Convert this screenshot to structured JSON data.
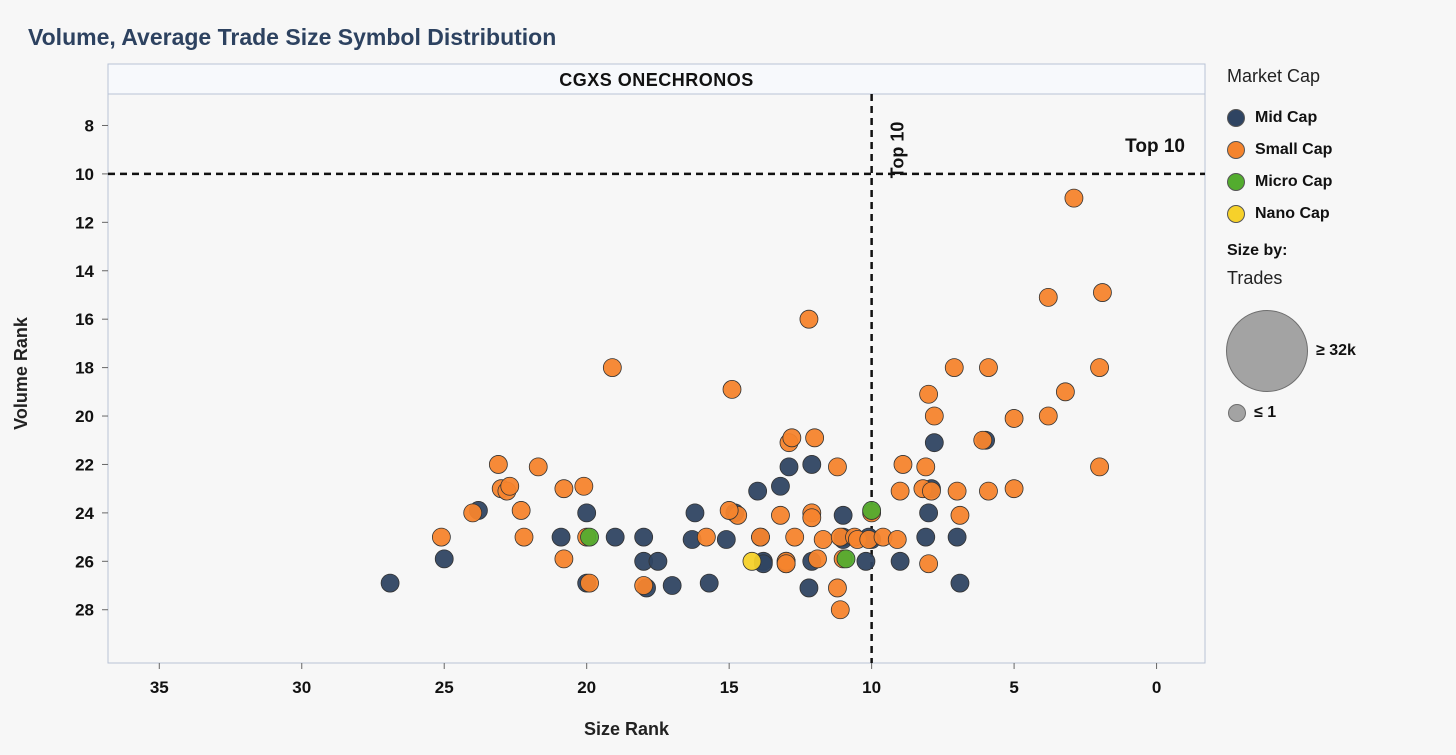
{
  "title": "Volume, Average Trade Size Symbol Distribution",
  "chart_data": {
    "type": "scatter",
    "panel_title": "CGXS ONECHRONOS",
    "xlabel": "Size Rank",
    "ylabel": "Volume Rank",
    "x_reversed": true,
    "y_reversed": true,
    "xlim": [
      36.8,
      -1.7
    ],
    "ylim": [
      6.7,
      30.2
    ],
    "x_ticks": [
      35,
      30,
      25,
      20,
      15,
      10,
      5,
      0
    ],
    "y_ticks": [
      8,
      10,
      12,
      14,
      16,
      18,
      20,
      22,
      24,
      26,
      28
    ],
    "reference_lines": [
      {
        "axis": "x",
        "value": 10,
        "label": "Top 10"
      },
      {
        "axis": "y",
        "value": 10,
        "label": "Top 10"
      }
    ],
    "colors": {
      "Mid Cap": "#2f4462",
      "Small Cap": "#f5842d",
      "Micro Cap": "#53ac2f",
      "Nano Cap": "#f6d12a"
    },
    "series": [
      {
        "name": "Mid Cap",
        "points": [
          [
            26.9,
            26.9
          ],
          [
            25,
            25.9
          ],
          [
            23.8,
            23.9
          ],
          [
            20.9,
            25
          ],
          [
            20,
            24
          ],
          [
            20,
            26.9
          ],
          [
            19,
            25
          ],
          [
            18,
            25
          ],
          [
            18,
            26
          ],
          [
            17.9,
            27.1
          ],
          [
            17.5,
            26
          ],
          [
            17,
            27
          ],
          [
            16.2,
            24
          ],
          [
            16.3,
            25.1
          ],
          [
            15.7,
            26.9
          ],
          [
            15.1,
            25.1
          ],
          [
            14.8,
            24
          ],
          [
            14,
            23.1
          ],
          [
            13.9,
            25
          ],
          [
            13.8,
            26
          ],
          [
            13.8,
            26.1
          ],
          [
            13.2,
            22.9
          ],
          [
            13,
            26
          ],
          [
            13,
            26.1
          ],
          [
            12.9,
            22.1
          ],
          [
            12.1,
            22
          ],
          [
            12.1,
            26
          ],
          [
            12.2,
            27.1
          ],
          [
            11,
            24.1
          ],
          [
            11,
            25
          ],
          [
            11,
            25.1
          ],
          [
            10.2,
            26
          ],
          [
            10,
            25.1
          ],
          [
            10.1,
            25
          ],
          [
            9,
            26
          ],
          [
            8.1,
            25
          ],
          [
            8,
            24
          ],
          [
            7.9,
            23
          ],
          [
            7.8,
            21.1
          ],
          [
            7,
            25
          ],
          [
            6.9,
            26.9
          ],
          [
            6,
            21
          ]
        ]
      },
      {
        "name": "Small Cap",
        "points": [
          [
            25.1,
            25
          ],
          [
            23.1,
            22
          ],
          [
            23,
            23
          ],
          [
            22.8,
            23.1
          ],
          [
            22.7,
            22.9
          ],
          [
            24,
            24
          ],
          [
            22.3,
            23.9
          ],
          [
            22.2,
            25
          ],
          [
            21.7,
            22.1
          ],
          [
            20.8,
            23
          ],
          [
            20.8,
            25.9
          ],
          [
            20.1,
            22.9
          ],
          [
            20,
            25
          ],
          [
            19.9,
            26.9
          ],
          [
            19.1,
            18
          ],
          [
            18,
            27
          ],
          [
            15.8,
            25
          ],
          [
            14.9,
            18.9
          ],
          [
            14.7,
            24.1
          ],
          [
            15,
            23.9
          ],
          [
            13.9,
            25
          ],
          [
            13.2,
            24.1
          ],
          [
            13,
            26
          ],
          [
            13,
            26.1
          ],
          [
            12.9,
            21.1
          ],
          [
            12.8,
            20.9
          ],
          [
            12.7,
            25
          ],
          [
            12.2,
            16
          ],
          [
            12.1,
            24
          ],
          [
            12.1,
            24.2
          ],
          [
            12,
            20.9
          ],
          [
            11.9,
            25.9
          ],
          [
            11.7,
            25.1
          ],
          [
            11.2,
            22.1
          ],
          [
            11.2,
            27.1
          ],
          [
            11.1,
            28
          ],
          [
            11.1,
            25
          ],
          [
            11,
            25.9
          ],
          [
            10.6,
            25
          ],
          [
            10.5,
            25.1
          ],
          [
            10.1,
            25.1
          ],
          [
            10,
            24
          ],
          [
            9.6,
            25
          ],
          [
            9.1,
            25.1
          ],
          [
            9,
            23.1
          ],
          [
            8.9,
            22
          ],
          [
            8.1,
            22.1
          ],
          [
            8.2,
            23
          ],
          [
            8,
            19.1
          ],
          [
            7.9,
            23.1
          ],
          [
            7.8,
            20
          ],
          [
            8,
            26.1
          ],
          [
            7.1,
            18
          ],
          [
            7,
            23.1
          ],
          [
            6.9,
            24.1
          ],
          [
            6.1,
            21
          ],
          [
            5.9,
            18
          ],
          [
            5.9,
            23.1
          ],
          [
            5,
            23
          ],
          [
            5,
            20.1
          ],
          [
            3.8,
            20
          ],
          [
            3.8,
            15.1
          ],
          [
            3.2,
            19
          ],
          [
            2.9,
            11
          ],
          [
            2,
            18
          ],
          [
            2,
            22.1
          ],
          [
            1.9,
            14.9
          ]
        ]
      },
      {
        "name": "Micro Cap",
        "points": [
          [
            19.9,
            25
          ],
          [
            10,
            23.9
          ],
          [
            10.9,
            25.9
          ]
        ]
      },
      {
        "name": "Nano Cap",
        "points": [
          [
            14.2,
            26
          ]
        ]
      }
    ]
  },
  "legend": {
    "title": "Market Cap",
    "items": [
      "Mid Cap",
      "Small Cap",
      "Micro Cap",
      "Nano Cap"
    ],
    "size_by_label": "Size by:",
    "size_field": "Trades",
    "size_max_label": "≥ 32k",
    "size_min_label": "≤ 1"
  }
}
